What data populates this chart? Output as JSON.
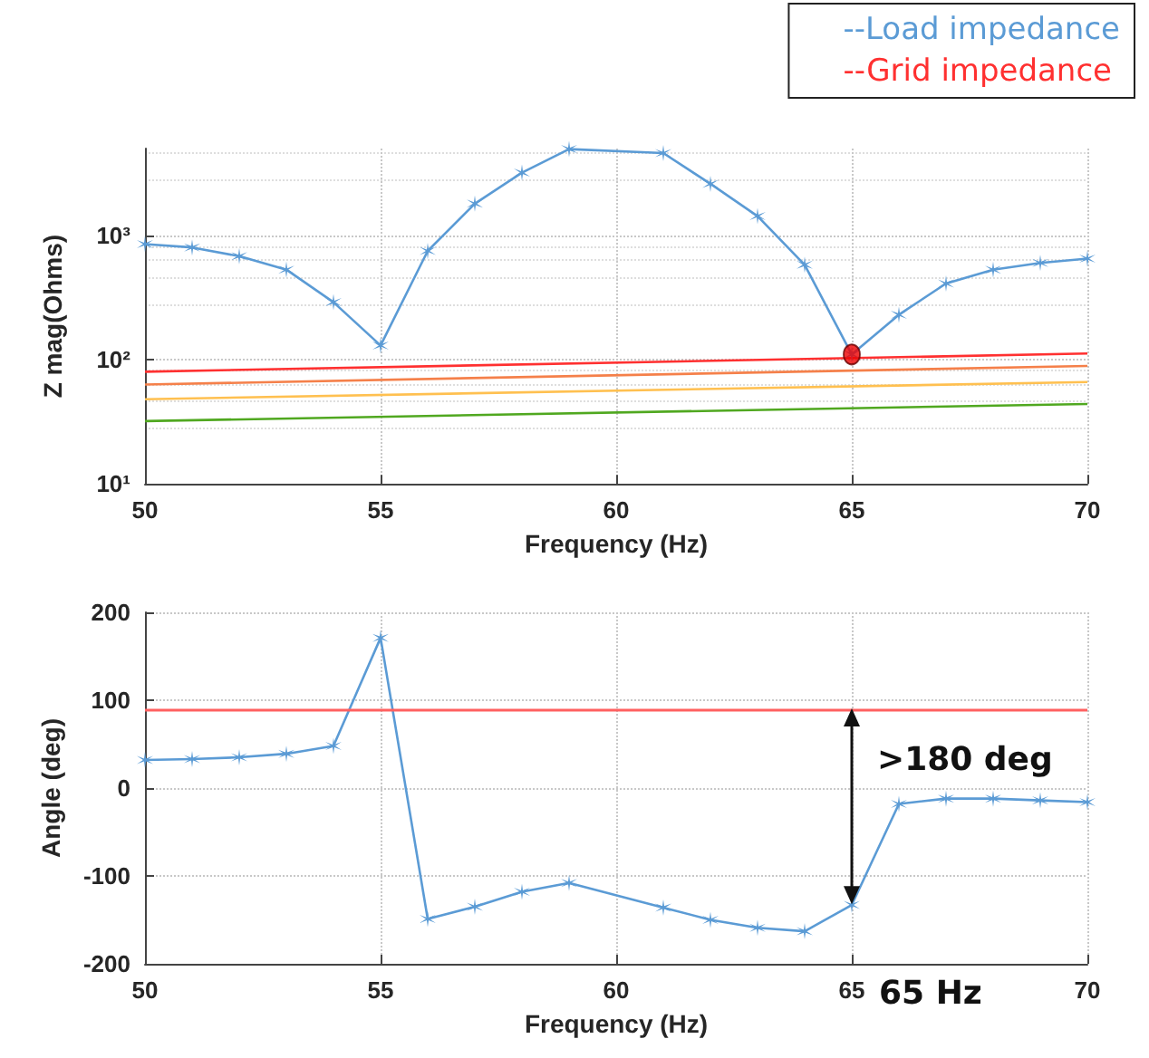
{
  "chart_data": [
    {
      "type": "line",
      "xlabel": "Frequency (Hz)",
      "ylabel": "Z mag(Ohms)",
      "log": "y",
      "grid": true,
      "legend": "top right",
      "marker": "cross",
      "xlim": [
        50,
        70
      ],
      "xticks": [
        50,
        55,
        60,
        65,
        70
      ],
      "ylim": [
        10,
        5000
      ],
      "yticks": [
        {
          "value": 10,
          "label": "10¹"
        },
        {
          "value": 100,
          "label": "10²"
        },
        {
          "value": 1000,
          "label": "10³"
        }
      ],
      "series": [
        {
          "name": "--Load impedance",
          "color": "#5b9bd5",
          "x": [
            50,
            51,
            52,
            53,
            54,
            55,
            56,
            57,
            58,
            59,
            61,
            62,
            63,
            64,
            65,
            66,
            67,
            68,
            69,
            70
          ],
          "values": [
            850,
            800,
            680,
            530,
            290,
            130,
            750,
            1800,
            3200,
            4950,
            4600,
            2600,
            1430,
            580,
            110,
            230,
            410,
            530,
            600,
            650
          ]
        },
        {
          "name": "--Grid impedance",
          "color": "#ff3030",
          "marker": "none",
          "x": [
            50,
            70
          ],
          "values": [
            80,
            112
          ]
        },
        {
          "color": "#f5804a",
          "marker": "none",
          "x": [
            50,
            70
          ],
          "values": [
            63,
            89
          ]
        },
        {
          "color": "#ffc050",
          "marker": "none",
          "x": [
            50,
            70
          ],
          "values": [
            48,
            66
          ]
        },
        {
          "color": "#50a820",
          "marker": "none",
          "x": [
            50,
            70
          ],
          "values": [
            32,
            44
          ]
        },
        {
          "type": "scatter",
          "color": "#ee0000",
          "marker": "circle",
          "x": [
            65
          ],
          "values": [
            110
          ]
        }
      ]
    },
    {
      "type": "line",
      "xlabel": "Frequency (Hz)",
      "ylabel": "Angle (deg)",
      "grid": true,
      "marker": "cross",
      "xlim": [
        50,
        70
      ],
      "xticks": [
        50,
        55,
        60,
        65,
        70
      ],
      "ylim": [
        -200,
        200
      ],
      "yticks": [
        -200,
        -100,
        0,
        100,
        200
      ],
      "series": [
        {
          "color": "#5b9bd5",
          "x": [
            50,
            51,
            52,
            53,
            54,
            55,
            56,
            57,
            58,
            59,
            61,
            62,
            63,
            64,
            65,
            66,
            67,
            68,
            69,
            70
          ],
          "values": [
            32,
            33,
            35,
            39,
            48,
            171,
            -149,
            -135,
            -118,
            -108,
            -136,
            -150,
            -159,
            -163,
            -133,
            -18,
            -12,
            -12,
            -14,
            -16
          ]
        }
      ],
      "ref_lines": [
        {
          "axis": "y",
          "value": 90,
          "color": "#ff6060"
        }
      ],
      "annotations": [
        {
          "text": ">180 deg",
          "x": 65,
          "y": 90
        },
        "65 Hz"
      ]
    }
  ]
}
